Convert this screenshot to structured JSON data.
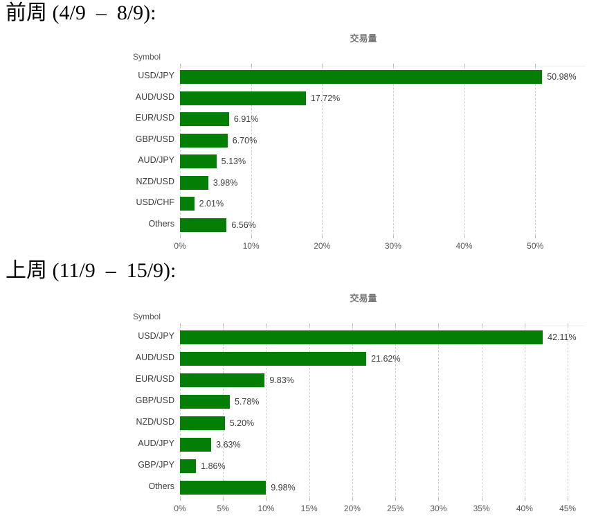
{
  "page": {
    "background": "#ffffff"
  },
  "sections": [
    {
      "heading": "前周 (4/9  –  8/9):"
    },
    {
      "heading": "上周 (11/9  –  15/9):"
    }
  ],
  "chart_data": [
    {
      "type": "bar",
      "orientation": "horizontal",
      "title": "交易量",
      "axis_header": "Symbol",
      "categories": [
        "USD/JPY",
        "AUD/USD",
        "EUR/USD",
        "GBP/USD",
        "AUD/JPY",
        "NZD/USD",
        "USD/CHF",
        "Others"
      ],
      "values": [
        50.98,
        17.72,
        6.91,
        6.7,
        5.13,
        3.98,
        2.01,
        6.56
      ],
      "value_labels": [
        "50.98%",
        "17.72%",
        "6.91%",
        "6.70%",
        "5.13%",
        "3.98%",
        "2.01%",
        "6.56%"
      ],
      "xlim": [
        0,
        57
      ],
      "xticks": [
        0,
        10,
        20,
        30,
        40,
        50
      ],
      "xtick_labels": [
        "0%",
        "10%",
        "20%",
        "30%",
        "40%",
        "50%"
      ],
      "bar_color": "#047e04",
      "grid": true,
      "legend": "none"
    },
    {
      "type": "bar",
      "orientation": "horizontal",
      "title": "交易量",
      "axis_header": "Symbol",
      "categories": [
        "USD/JPY",
        "AUD/USD",
        "EUR/USD",
        "GBP/USD",
        "NZD/USD",
        "AUD/JPY",
        "GBP/JPY",
        "Others"
      ],
      "values": [
        42.11,
        21.62,
        9.83,
        5.78,
        5.2,
        3.63,
        1.86,
        9.98
      ],
      "value_labels": [
        "42.11%",
        "21.62%",
        "9.83%",
        "5.78%",
        "5.20%",
        "3.63%",
        "1.86%",
        "9.98%"
      ],
      "xlim": [
        0,
        47
      ],
      "xticks": [
        0,
        5,
        10,
        15,
        20,
        25,
        30,
        35,
        40,
        45
      ],
      "xtick_labels": [
        "0%",
        "5%",
        "10%",
        "15%",
        "20%",
        "25%",
        "30%",
        "35%",
        "40%",
        "45%"
      ],
      "bar_color": "#047e04",
      "grid": true,
      "legend": "none"
    }
  ]
}
